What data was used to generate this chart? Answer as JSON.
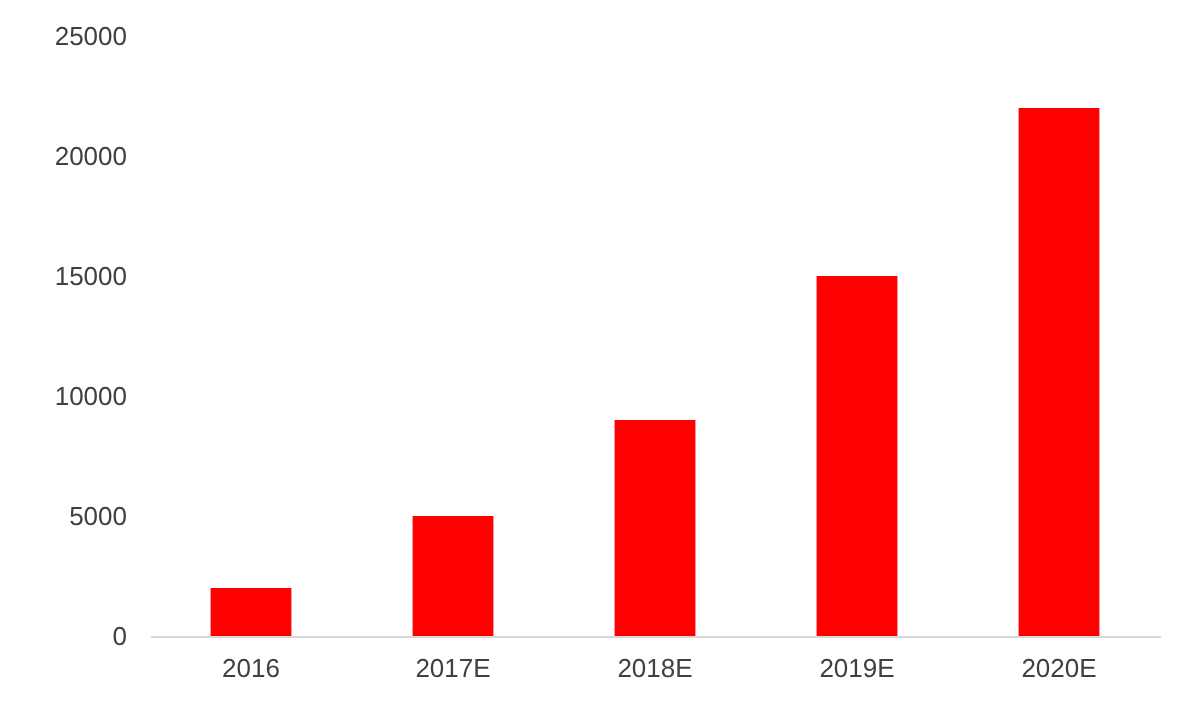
{
  "chart_data": {
    "type": "bar",
    "categories": [
      "2016",
      "2017E",
      "2018E",
      "2019E",
      "2020E"
    ],
    "values": [
      2000,
      5000,
      9000,
      15000,
      22000
    ],
    "color": "#ff0000",
    "ylim": [
      0,
      25000
    ],
    "yticks": [
      0,
      5000,
      10000,
      15000,
      20000,
      25000
    ],
    "grid": false
  }
}
